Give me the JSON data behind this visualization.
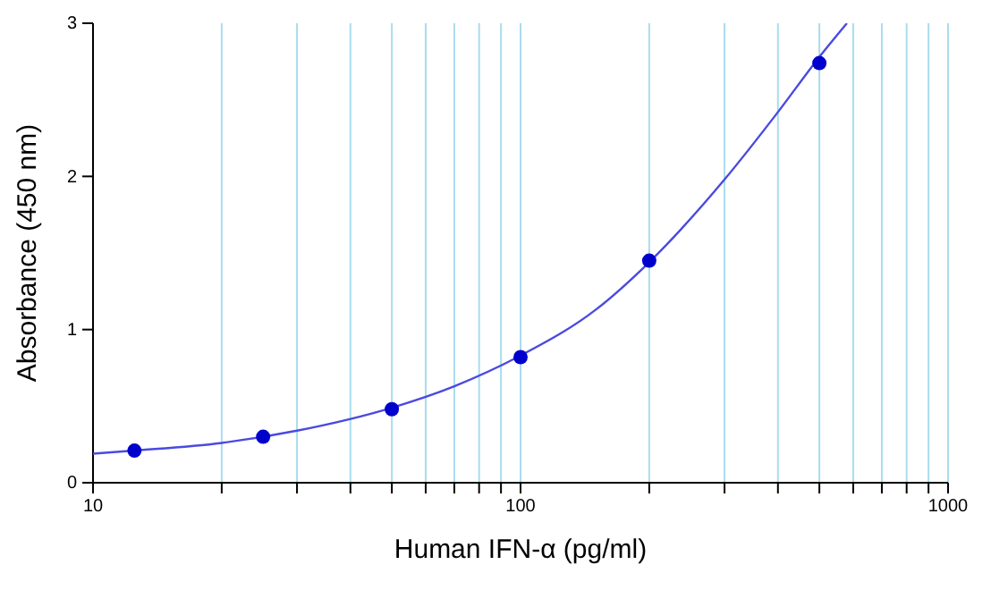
{
  "chart_data": {
    "type": "scatter",
    "xlabel": "Human IFN-α (pg/ml)",
    "ylabel": "Absorbance (450 nm)",
    "log": "x",
    "grid": "x",
    "marker": "circle",
    "xlim": [
      10,
      1000
    ],
    "ylim": [
      0,
      3
    ],
    "xticks": [
      10,
      {
        "value": 20,
        "label": null
      },
      {
        "value": 30,
        "label": null
      },
      {
        "value": 40,
        "label": null
      },
      {
        "value": 50,
        "label": null
      },
      {
        "value": 60,
        "label": null
      },
      {
        "value": 70,
        "label": null
      },
      {
        "value": 80,
        "label": null
      },
      {
        "value": 90,
        "label": null
      },
      100,
      {
        "value": 200,
        "label": null
      },
      {
        "value": 300,
        "label": null
      },
      {
        "value": 400,
        "label": null
      },
      {
        "value": 500,
        "label": null
      },
      {
        "value": 600,
        "label": null
      },
      {
        "value": 700,
        "label": null
      },
      {
        "value": 800,
        "label": null
      },
      {
        "value": 900,
        "label": null
      },
      1000
    ],
    "yticks": [
      0,
      1,
      2,
      3
    ],
    "series": [
      {
        "type": "line",
        "color": "#4a4ae0",
        "marker": "none",
        "x": [
          10,
          12.5,
          20,
          30,
          50,
          70,
          100,
          150,
          200,
          300,
          400,
          500,
          580
        ],
        "values": [
          0.19,
          0.21,
          0.26,
          0.34,
          0.49,
          0.63,
          0.83,
          1.13,
          1.44,
          1.98,
          2.42,
          2.78,
          3.0
        ]
      },
      {
        "color": "#0000cc",
        "x": [
          12.5,
          25,
          50,
          100,
          200,
          500
        ],
        "values": [
          0.21,
          0.3,
          0.48,
          0.82,
          1.45,
          2.74
        ]
      }
    ]
  }
}
